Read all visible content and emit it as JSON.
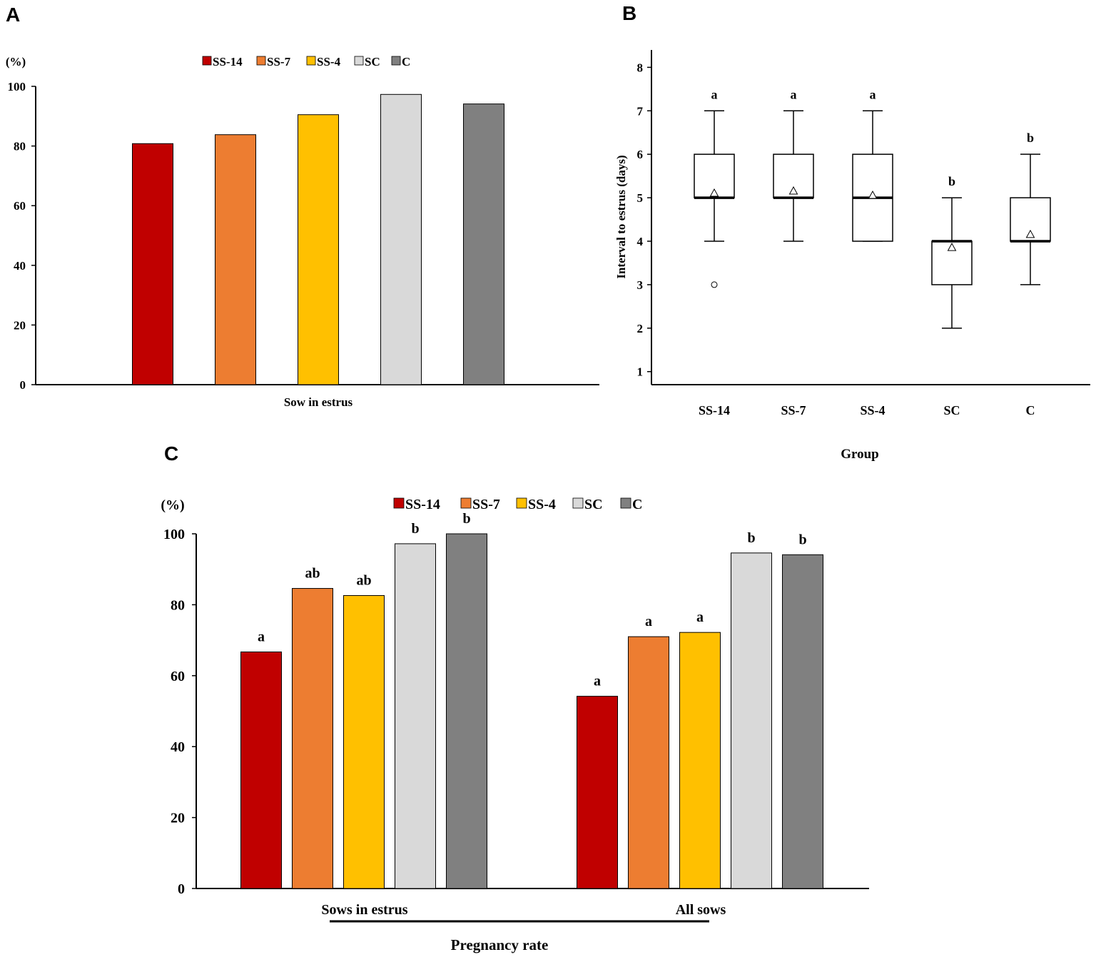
{
  "chart_data": [
    {
      "panel": "A",
      "type": "bar",
      "ylabel": "(%)",
      "ylim": [
        0,
        100
      ],
      "yticks": [
        "0",
        "20",
        "40",
        "60",
        "80",
        "100"
      ],
      "xlabel": "Sow in estrus",
      "legend": [
        {
          "name": "SS-14",
          "color": "#c00000"
        },
        {
          "name": "SS-7",
          "color": "#ed7d31"
        },
        {
          "name": "SS-4",
          "color": "#ffc000"
        },
        {
          "name": "SC",
          "color": "#d9d9d9"
        },
        {
          "name": "C",
          "color": "#808080"
        }
      ],
      "series": [
        {
          "name": "SS-14",
          "values": [
            80.8
          ]
        },
        {
          "name": "SS-7",
          "values": [
            83.8
          ]
        },
        {
          "name": "SS-4",
          "values": [
            90.5
          ]
        },
        {
          "name": "SC",
          "values": [
            97.3
          ]
        },
        {
          "name": "C",
          "values": [
            94.1
          ]
        }
      ]
    },
    {
      "panel": "B",
      "type": "box",
      "ylabel": "Interval to estrus (days)",
      "xlabel": "Group",
      "ylim": [
        0.7,
        8.4
      ],
      "yticks": [
        "1",
        "2",
        "3",
        "4",
        "5",
        "6",
        "7",
        "8"
      ],
      "groups": [
        {
          "name": "SS-14",
          "min": 4,
          "q1": 5,
          "median": 5,
          "q3": 6,
          "max": 7,
          "mean": 5.1,
          "outliers": [
            3
          ],
          "letter": "a"
        },
        {
          "name": "SS-7",
          "min": 4,
          "q1": 5,
          "median": 5,
          "q3": 6,
          "max": 7,
          "mean": 5.15,
          "outliers": [],
          "letter": "a"
        },
        {
          "name": "SS-4",
          "min": 4,
          "q1": 4,
          "median": 5,
          "q3": 6,
          "max": 7,
          "mean": 5.05,
          "outliers": [],
          "letter": "a"
        },
        {
          "name": "SC",
          "min": 2,
          "q1": 3,
          "median": 4,
          "q3": 4,
          "max": 5,
          "mean": 3.85,
          "outliers": [],
          "letter": "b"
        },
        {
          "name": "C",
          "min": 3,
          "q1": 4,
          "median": 4,
          "q3": 5,
          "max": 6,
          "mean": 4.15,
          "outliers": [],
          "letter": "b"
        }
      ]
    },
    {
      "panel": "C",
      "type": "bar",
      "ylabel": "(%)",
      "ylim": [
        0,
        100
      ],
      "yticks": [
        "0",
        "20",
        "40",
        "60",
        "80",
        "100"
      ],
      "categories": [
        "Sows in estrus",
        "All sows"
      ],
      "xlabel": "Pregnancy rate",
      "legend": [
        {
          "name": "SS-14",
          "color": "#c00000"
        },
        {
          "name": "SS-7",
          "color": "#ed7d31"
        },
        {
          "name": "SS-4",
          "color": "#ffc000"
        },
        {
          "name": "SC",
          "color": "#d9d9d9"
        },
        {
          "name": "C",
          "color": "#808080"
        }
      ],
      "series": [
        {
          "name": "SS-14",
          "values": [
            66.7,
            54.2
          ],
          "letters": [
            "a",
            "a"
          ]
        },
        {
          "name": "SS-7",
          "values": [
            84.6,
            71.0
          ],
          "letters": [
            "ab",
            "a"
          ]
        },
        {
          "name": "SS-4",
          "values": [
            82.6,
            72.2
          ],
          "letters": [
            "ab",
            "a"
          ]
        },
        {
          "name": "SC",
          "values": [
            97.2,
            94.6
          ],
          "letters": [
            "b",
            "b"
          ]
        },
        {
          "name": "C",
          "values": [
            100,
            94.1
          ],
          "letters": [
            "b",
            "b"
          ]
        }
      ]
    }
  ],
  "panel_labels": {
    "a": "A",
    "b": "B",
    "c": "C"
  }
}
